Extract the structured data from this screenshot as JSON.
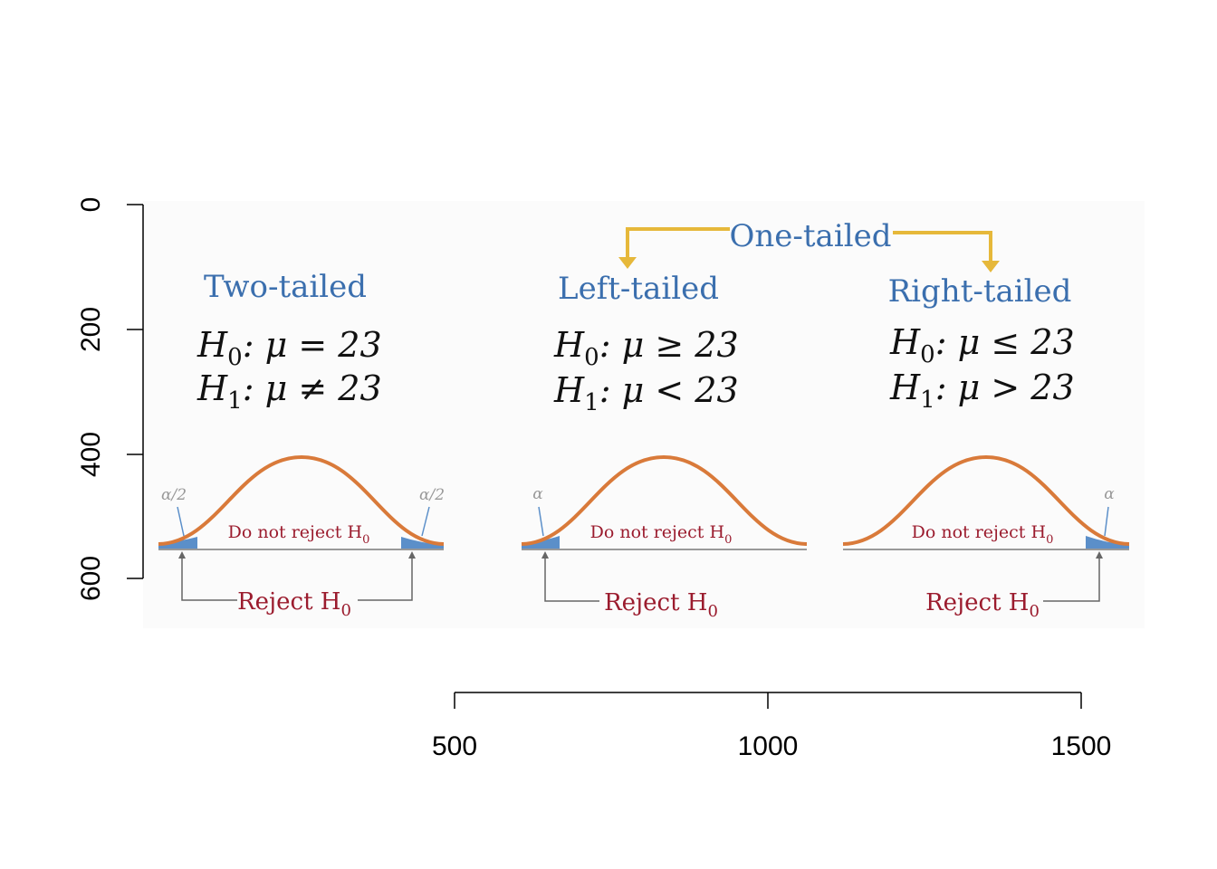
{
  "axes": {
    "y_ticks": [
      "0",
      "200",
      "400",
      "600"
    ],
    "x_ticks": [
      "500",
      "1000",
      "1500"
    ]
  },
  "header": {
    "one_tailed": "One-tailed"
  },
  "panels": [
    {
      "title": "Two-tailed",
      "h0_sym": "H",
      "h0_sub": "0",
      "h0_rel": ":  μ = 23",
      "h1_sym": "H",
      "h1_sub": "1",
      "h1_rel": ":  μ ≠ 23",
      "alpha_left": "α/2",
      "alpha_right": "α/2",
      "do_not_reject": "Do not reject H",
      "do_not_reject_sub": "0",
      "reject": "Reject H",
      "reject_sub": "0"
    },
    {
      "title": "Left-tailed",
      "h0_sym": "H",
      "h0_sub": "0",
      "h0_rel": ":  μ ≥ 23",
      "h1_sym": "H",
      "h1_sub": "1",
      "h1_rel": ":  μ < 23",
      "alpha_left": "α",
      "do_not_reject": "Do not reject H",
      "do_not_reject_sub": "0",
      "reject": "Reject H",
      "reject_sub": "0"
    },
    {
      "title": "Right-tailed",
      "h0_sym": "H",
      "h0_sub": "0",
      "h0_rel": ":  μ ≤ 23",
      "h1_sym": "H",
      "h1_sub": "1",
      "h1_rel": ":  μ > 23",
      "alpha_right": "α",
      "do_not_reject": "Do not reject H",
      "do_not_reject_sub": "0",
      "reject": "Reject H",
      "reject_sub": "0"
    }
  ],
  "colors": {
    "title_blue": "#3b6fae",
    "curve_orange": "#d97a3a",
    "tail_fill": "#5b8fc9",
    "reject_red": "#9b1c2e",
    "arrow_gold": "#e6b83a",
    "gray": "#777777",
    "panel_bg": "#fbfbfb"
  }
}
